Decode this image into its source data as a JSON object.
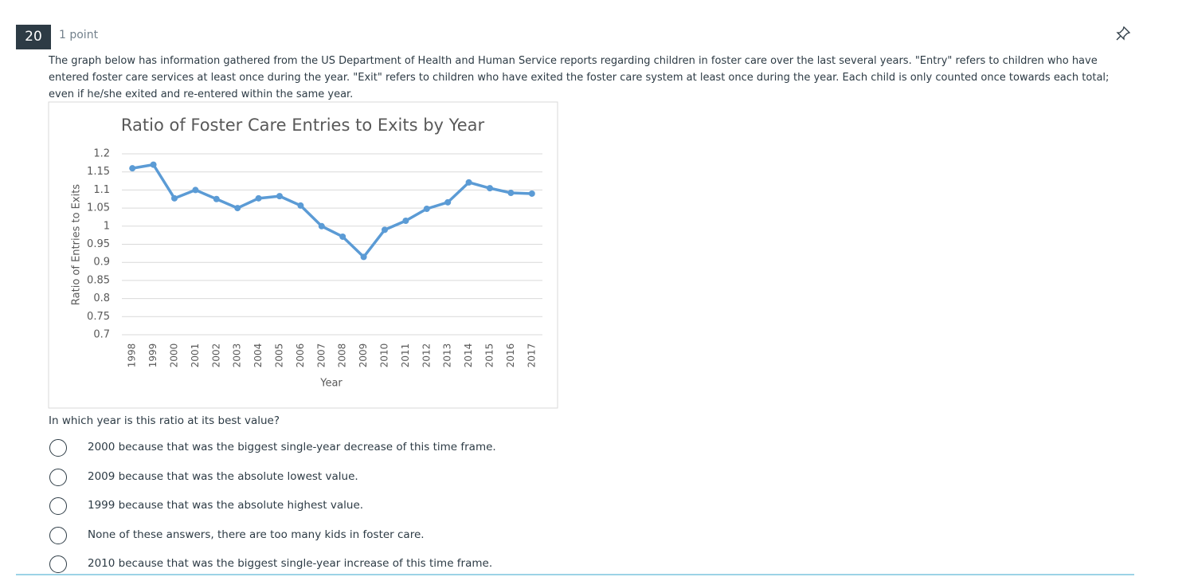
{
  "question": {
    "number": "20",
    "points": "1 point",
    "prompt": "The graph below has information gathered from the US Department of Health and Human Service reports regarding children in foster care over the last several years. \"Entry\" refers to children who have entered foster care services at least once during the year. \"Exit\" refers to children who have exited the foster care system at least once during the year. Each child is only counted once towards each total; even if he/she exited and re-entered within the same year.",
    "ask": "In which year is this ratio at its best value?",
    "options": [
      "2000 because that was the biggest single-year decrease of this time frame.",
      "2009 because that was the absolute lowest value.",
      "1999 because that was the absolute highest value.",
      "None of these answers, there are too many kids in foster care.",
      "2010 because that was the biggest single-year increase of this time frame."
    ]
  },
  "chart_data": {
    "type": "line",
    "title": "Ratio of Foster Care Entries to Exits by Year",
    "x_label": "Year",
    "y_label": "Ratio of Entries to Exits",
    "categories": [
      "1998",
      "1999",
      "2000",
      "2001",
      "2002",
      "2003",
      "2004",
      "2005",
      "2006",
      "2007",
      "2008",
      "2009",
      "2010",
      "2011",
      "2012",
      "2013",
      "2014",
      "2015",
      "2016",
      "2017"
    ],
    "values": [
      1.16,
      1.17,
      1.077,
      1.1,
      1.075,
      1.05,
      1.077,
      1.083,
      1.057,
      1.0,
      0.971,
      0.915,
      0.99,
      1.015,
      1.048,
      1.066,
      1.121,
      1.105,
      1.092,
      1.09
    ],
    "color": "#5b9bd5",
    "ylim": [
      0.7,
      1.2
    ],
    "yticks": [
      0.7,
      0.75,
      0.8,
      0.85,
      0.9,
      0.95,
      1,
      1.05,
      1.1,
      1.15,
      1.2
    ],
    "grid": true
  }
}
